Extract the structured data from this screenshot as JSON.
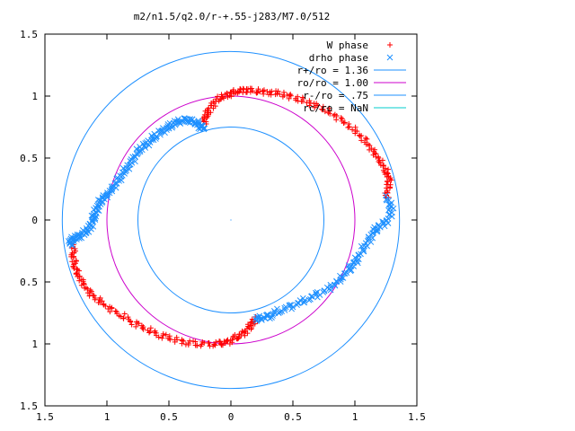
{
  "chart_data": {
    "type": "scatter",
    "title": "m2/n1.5/q2.0/r-+.55-j283/M7.0/512",
    "xlim": [
      -1.5,
      1.5
    ],
    "ylim": [
      -1.5,
      1.5
    ],
    "xticks": [
      -1.5,
      -1,
      -0.5,
      0,
      0.5,
      1,
      1.5
    ],
    "yticks": [
      -1.5,
      -1,
      -0.5,
      0,
      0.5,
      1,
      1.5
    ],
    "xtick_labels": [
      "1.5",
      "1",
      "0.5",
      "0",
      "0.5",
      "1",
      "1.5"
    ],
    "ytick_labels": [
      "1.5",
      "1",
      "0.5",
      "0",
      "0.5",
      "1",
      "1.5"
    ],
    "grid": false,
    "legend_position": "top-right",
    "series": [
      {
        "name": "W phase",
        "marker": "plus",
        "color": "#ff0000",
        "segments": [
          [
            [
              -0.22,
              0.78
            ],
            [
              -0.2,
              0.84
            ],
            [
              -0.17,
              0.9
            ],
            [
              -0.12,
              0.96
            ],
            [
              -0.06,
              1.0
            ],
            [
              0.0,
              1.02
            ],
            [
              0.06,
              1.04
            ],
            [
              0.12,
              1.05
            ],
            [
              0.2,
              1.04
            ],
            [
              0.3,
              1.03
            ],
            [
              0.4,
              1.02
            ],
            [
              0.5,
              0.99
            ],
            [
              0.6,
              0.96
            ],
            [
              0.7,
              0.92
            ],
            [
              0.8,
              0.87
            ],
            [
              0.9,
              0.8
            ],
            [
              1.0,
              0.72
            ],
            [
              1.08,
              0.64
            ],
            [
              1.15,
              0.55
            ],
            [
              1.2,
              0.48
            ],
            [
              1.25,
              0.4
            ],
            [
              1.28,
              0.33
            ],
            [
              1.27,
              0.26
            ],
            [
              1.25,
              0.18
            ]
          ],
          [
            [
              0.2,
              -0.8
            ],
            [
              0.17,
              -0.84
            ],
            [
              0.13,
              -0.89
            ],
            [
              0.08,
              -0.93
            ],
            [
              0.02,
              -0.96
            ],
            [
              -0.04,
              -0.99
            ],
            [
              -0.1,
              -1.0
            ],
            [
              -0.2,
              -1.0
            ],
            [
              -0.3,
              -1.0
            ],
            [
              -0.4,
              -0.98
            ],
            [
              -0.5,
              -0.95
            ],
            [
              -0.6,
              -0.92
            ],
            [
              -0.7,
              -0.87
            ],
            [
              -0.8,
              -0.82
            ],
            [
              -0.9,
              -0.76
            ],
            [
              -1.0,
              -0.7
            ],
            [
              -1.08,
              -0.64
            ],
            [
              -1.15,
              -0.58
            ],
            [
              -1.2,
              -0.5
            ],
            [
              -1.24,
              -0.43
            ],
            [
              -1.26,
              -0.36
            ],
            [
              -1.27,
              -0.28
            ],
            [
              -1.27,
              -0.2
            ]
          ]
        ]
      },
      {
        "name": "drho phase",
        "marker": "cross",
        "color": "#1e90ff",
        "segments": [
          [
            [
              -1.3,
              -0.2
            ],
            [
              -1.28,
              -0.16
            ],
            [
              -1.25,
              -0.14
            ],
            [
              -1.2,
              -0.12
            ],
            [
              -1.15,
              -0.08
            ],
            [
              -1.12,
              -0.02
            ],
            [
              -1.1,
              0.04
            ],
            [
              -1.08,
              0.1
            ],
            [
              -1.05,
              0.16
            ],
            [
              -1.0,
              0.2
            ],
            [
              -0.95,
              0.26
            ],
            [
              -0.9,
              0.33
            ],
            [
              -0.85,
              0.4
            ],
            [
              -0.8,
              0.47
            ],
            [
              -0.75,
              0.55
            ],
            [
              -0.7,
              0.6
            ],
            [
              -0.64,
              0.65
            ],
            [
              -0.58,
              0.7
            ],
            [
              -0.52,
              0.74
            ],
            [
              -0.46,
              0.78
            ],
            [
              -0.4,
              0.8
            ],
            [
              -0.34,
              0.81
            ],
            [
              -0.29,
              0.79
            ],
            [
              -0.25,
              0.76
            ],
            [
              -0.22,
              0.74
            ]
          ],
          [
            [
              1.25,
              0.18
            ],
            [
              1.3,
              0.1
            ],
            [
              1.27,
              0.0
            ],
            [
              1.2,
              -0.05
            ],
            [
              1.15,
              -0.1
            ],
            [
              1.1,
              -0.18
            ],
            [
              1.05,
              -0.26
            ],
            [
              1.0,
              -0.34
            ],
            [
              0.95,
              -0.4
            ],
            [
              0.88,
              -0.48
            ],
            [
              0.8,
              -0.55
            ],
            [
              0.7,
              -0.6
            ],
            [
              0.6,
              -0.65
            ],
            [
              0.5,
              -0.69
            ],
            [
              0.4,
              -0.73
            ],
            [
              0.32,
              -0.77
            ],
            [
              0.26,
              -0.79
            ],
            [
              0.2,
              -0.8
            ]
          ]
        ]
      },
      {
        "name": "r+/ro = 1.36",
        "kind": "circle",
        "radius": 1.36,
        "color": "#1e90ff"
      },
      {
        "name": "ro/ro = 1.00",
        "kind": "circle",
        "radius": 1.0,
        "color": "#cc00cc"
      },
      {
        "name": "r-/ro = .75",
        "kind": "circle",
        "radius": 0.75,
        "color": "#1e90ff"
      },
      {
        "name": "rc/ro = NaN",
        "kind": "circle",
        "radius": null,
        "color": "#00cccc"
      }
    ]
  }
}
